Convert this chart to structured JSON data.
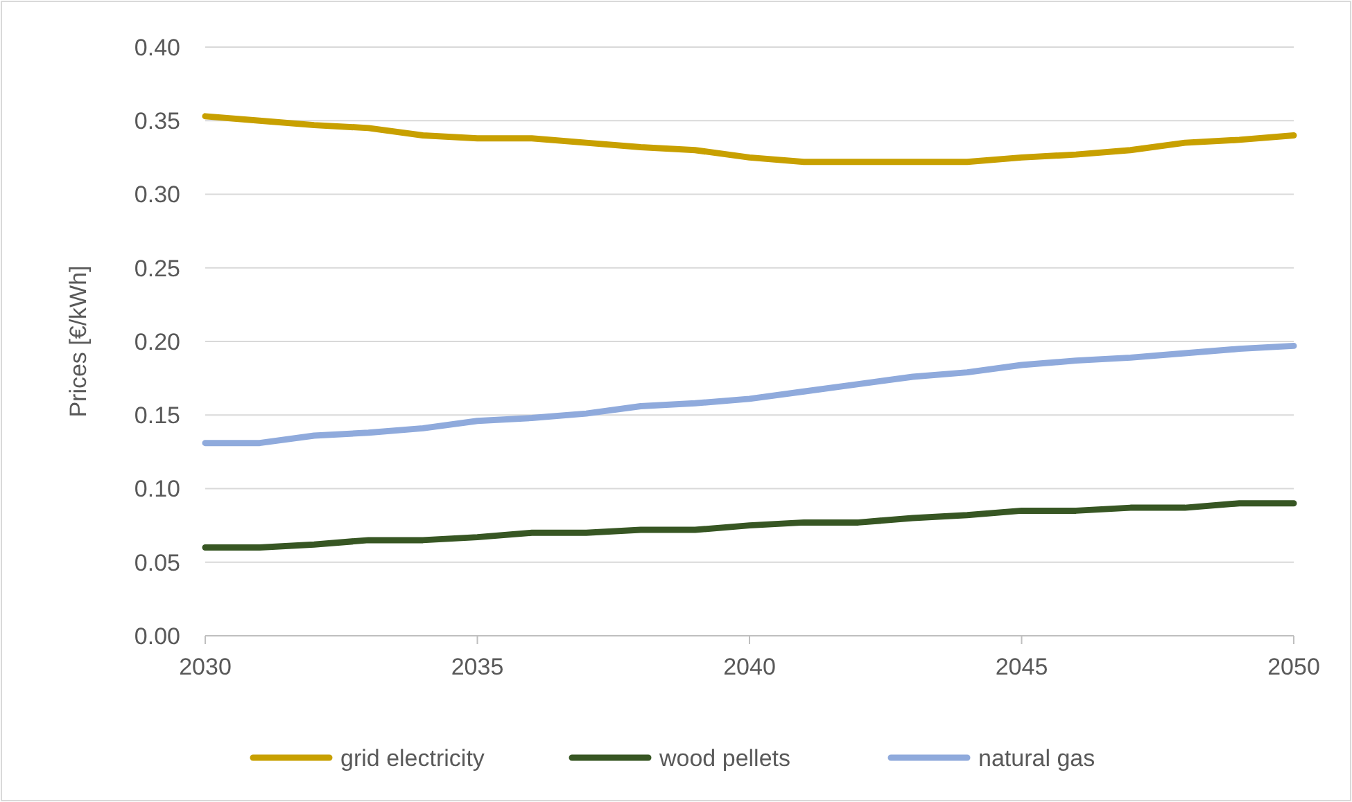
{
  "chart_data": {
    "type": "line",
    "ylabel": "Prices [€/kWh]",
    "x": [
      2030,
      2031,
      2032,
      2033,
      2034,
      2035,
      2036,
      2037,
      2038,
      2039,
      2040,
      2041,
      2042,
      2043,
      2044,
      2045,
      2046,
      2047,
      2048,
      2049,
      2050
    ],
    "series": [
      {
        "name": "grid electricity",
        "color": "#c8a000",
        "values": [
          0.353,
          0.35,
          0.347,
          0.345,
          0.34,
          0.338,
          0.338,
          0.335,
          0.332,
          0.33,
          0.325,
          0.322,
          0.322,
          0.322,
          0.322,
          0.325,
          0.327,
          0.33,
          0.335,
          0.337,
          0.34
        ]
      },
      {
        "name": "wood pellets",
        "color": "#375623",
        "values": [
          0.06,
          0.06,
          0.062,
          0.065,
          0.065,
          0.067,
          0.07,
          0.07,
          0.072,
          0.072,
          0.075,
          0.077,
          0.077,
          0.08,
          0.082,
          0.085,
          0.085,
          0.087,
          0.087,
          0.09,
          0.09
        ]
      },
      {
        "name": "natural gas",
        "color": "#8faadc",
        "values": [
          0.131,
          0.131,
          0.136,
          0.138,
          0.141,
          0.146,
          0.148,
          0.151,
          0.156,
          0.158,
          0.161,
          0.166,
          0.171,
          0.176,
          0.179,
          0.184,
          0.187,
          0.189,
          0.192,
          0.195,
          0.197
        ]
      }
    ],
    "xlim": [
      2030,
      2050
    ],
    "xticks": [
      2030,
      2035,
      2040,
      2045,
      2050
    ],
    "ylim": [
      0,
      0.4
    ],
    "yticks": [
      {
        "value": 0,
        "label": "0.00"
      },
      {
        "value": 0.05,
        "label": "0.05"
      },
      {
        "value": 0.1,
        "label": "0.10"
      },
      {
        "value": 0.15,
        "label": "0.15"
      },
      {
        "value": 0.2,
        "label": "0.20"
      },
      {
        "value": 0.25,
        "label": "0.25"
      },
      {
        "value": 0.3,
        "label": "0.30"
      },
      {
        "value": 0.35,
        "label": "0.35"
      },
      {
        "value": 0.4,
        "label": "0.40"
      }
    ],
    "grid": "y",
    "legend": "bottom",
    "marker": "none",
    "line_style": "solid"
  }
}
